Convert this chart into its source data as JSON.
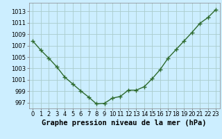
{
  "x": [
    0,
    1,
    2,
    3,
    4,
    5,
    6,
    7,
    8,
    9,
    10,
    11,
    12,
    13,
    14,
    15,
    16,
    17,
    18,
    19,
    20,
    21,
    22,
    23
  ],
  "y": [
    1007.8,
    1006.2,
    1004.8,
    1003.3,
    1001.5,
    1000.3,
    999.1,
    998.0,
    996.8,
    996.9,
    997.8,
    998.1,
    999.2,
    999.2,
    999.8,
    1001.2,
    1002.8,
    1004.8,
    1006.3,
    1007.8,
    1009.3,
    1010.9,
    1011.9,
    1013.3
  ],
  "line_color": "#2d6a2d",
  "marker": "+",
  "marker_size": 4,
  "marker_lw": 1.0,
  "bg_color": "#cceeff",
  "grid_color": "#aacccc",
  "xlabel": "Graphe pression niveau de la mer (hPa)",
  "xlabel_fontsize": 7.5,
  "yticks": [
    997,
    999,
    1001,
    1003,
    1005,
    1007,
    1009,
    1011,
    1013
  ],
  "xticks": [
    0,
    1,
    2,
    3,
    4,
    5,
    6,
    7,
    8,
    9,
    10,
    11,
    12,
    13,
    14,
    15,
    16,
    17,
    18,
    19,
    20,
    21,
    22,
    23
  ],
  "ylim": [
    996.0,
    1014.5
  ],
  "xlim": [
    -0.5,
    23.5
  ],
  "tick_fontsize": 6,
  "line_width": 1.0
}
